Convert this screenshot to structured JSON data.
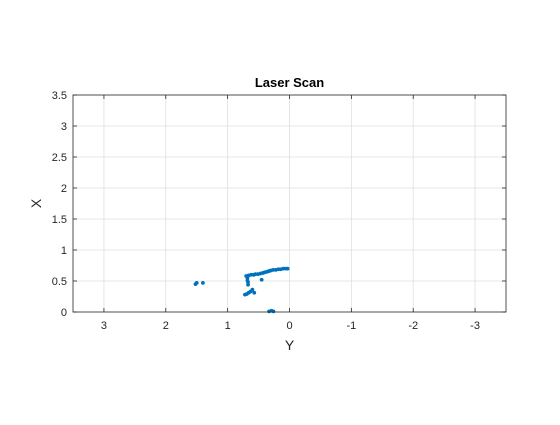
{
  "chart_data": {
    "type": "scatter",
    "title": "Laser Scan",
    "xlabel": "Y",
    "ylabel": "X",
    "xlim": [
      3.5,
      -3.5
    ],
    "ylim": [
      0,
      3.5
    ],
    "x_reversed": true,
    "grid": true,
    "x_ticks": [
      3,
      2,
      1,
      0,
      -1,
      -2,
      -3
    ],
    "x_tick_labels": [
      "3",
      "2",
      "1",
      "0",
      "-1",
      "-2",
      "-3"
    ],
    "y_ticks": [
      0,
      0.5,
      1,
      1.5,
      2,
      2.5,
      3,
      3.5
    ],
    "y_tick_labels": [
      "0",
      "0.5",
      "1",
      "1.5",
      "2",
      "2.5",
      "3",
      "3.5"
    ],
    "marker_color": "#0072BD",
    "grid_color": "#DFDFDF",
    "axis_color": "#262626",
    "points": [
      {
        "x": 1.52,
        "y": 0.45
      },
      {
        "x": 1.5,
        "y": 0.47
      },
      {
        "x": 1.4,
        "y": 0.47
      },
      {
        "x": 0.7,
        "y": 0.58
      },
      {
        "x": 0.66,
        "y": 0.59
      },
      {
        "x": 0.62,
        "y": 0.6
      },
      {
        "x": 0.58,
        "y": 0.6
      },
      {
        "x": 0.55,
        "y": 0.61
      },
      {
        "x": 0.51,
        "y": 0.61
      },
      {
        "x": 0.47,
        "y": 0.62
      },
      {
        "x": 0.43,
        "y": 0.63
      },
      {
        "x": 0.4,
        "y": 0.64
      },
      {
        "x": 0.36,
        "y": 0.65
      },
      {
        "x": 0.33,
        "y": 0.66
      },
      {
        "x": 0.3,
        "y": 0.67
      },
      {
        "x": 0.26,
        "y": 0.68
      },
      {
        "x": 0.22,
        "y": 0.68
      },
      {
        "x": 0.18,
        "y": 0.69
      },
      {
        "x": 0.14,
        "y": 0.69
      },
      {
        "x": 0.1,
        "y": 0.7
      },
      {
        "x": 0.06,
        "y": 0.7
      },
      {
        "x": 0.03,
        "y": 0.7
      },
      {
        "x": 0.68,
        "y": 0.55
      },
      {
        "x": 0.68,
        "y": 0.51
      },
      {
        "x": 0.67,
        "y": 0.48
      },
      {
        "x": 0.67,
        "y": 0.44
      },
      {
        "x": 0.45,
        "y": 0.52
      },
      {
        "x": 0.72,
        "y": 0.28
      },
      {
        "x": 0.69,
        "y": 0.29
      },
      {
        "x": 0.66,
        "y": 0.31
      },
      {
        "x": 0.63,
        "y": 0.33
      },
      {
        "x": 0.6,
        "y": 0.36
      },
      {
        "x": 0.57,
        "y": 0.31
      },
      {
        "x": 0.33,
        "y": 0.01
      },
      {
        "x": 0.29,
        "y": 0.02
      },
      {
        "x": 0.26,
        "y": 0.01
      }
    ]
  }
}
